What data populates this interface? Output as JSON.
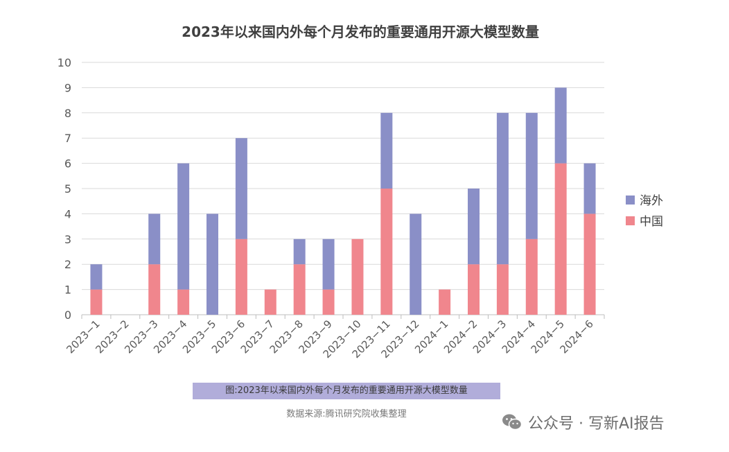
{
  "chart_data": {
    "type": "bar",
    "stacked": true,
    "title": "2023年以来国内外每个月发布的重要通用开源大模型数量",
    "categories": [
      "2023-1",
      "2023-2",
      "2023-3",
      "2023-4",
      "2023-5",
      "2023-6",
      "2023-7",
      "2023-8",
      "2023-9",
      "2023-10",
      "2023-11",
      "2023-12",
      "2024-1",
      "2024-2",
      "2024-3",
      "2024-4",
      "2024-5",
      "2024-6"
    ],
    "category_labels": [
      "2023−1",
      "2023−2",
      "2023−3",
      "2023−4",
      "2023−5",
      "2023−6",
      "2023−7",
      "2023−8",
      "2023−9",
      "2023−10",
      "2023−11",
      "2023−12",
      "2024−1",
      "2024−2",
      "2024−3",
      "2024−4",
      "2024−5",
      "2024−6"
    ],
    "series": [
      {
        "name": "中国",
        "color": "#f0868d",
        "values": [
          1,
          0,
          2,
          1,
          0,
          3,
          1,
          2,
          1,
          3,
          5,
          0,
          1,
          2,
          2,
          3,
          6,
          4
        ]
      },
      {
        "name": "海外",
        "color": "#8a8fc7",
        "values": [
          1,
          0,
          2,
          5,
          4,
          4,
          0,
          1,
          2,
          0,
          3,
          4,
          0,
          3,
          6,
          5,
          3,
          2
        ]
      }
    ],
    "legend_order": [
      "海外",
      "中国"
    ],
    "legend_position": "right",
    "ylim": [
      0,
      10
    ],
    "yticks": [
      0,
      1,
      2,
      3,
      4,
      5,
      6,
      7,
      8,
      9,
      10
    ],
    "grid": true,
    "xlabel": "",
    "ylabel": ""
  },
  "caption": "图:2023年以来国内外每个月发布的重要通用开源大模型数量",
  "source": "数据来源:腾讯研究院收集整理",
  "watermark": {
    "prefix": "公众号 · ",
    "account": "写新AI报告"
  }
}
